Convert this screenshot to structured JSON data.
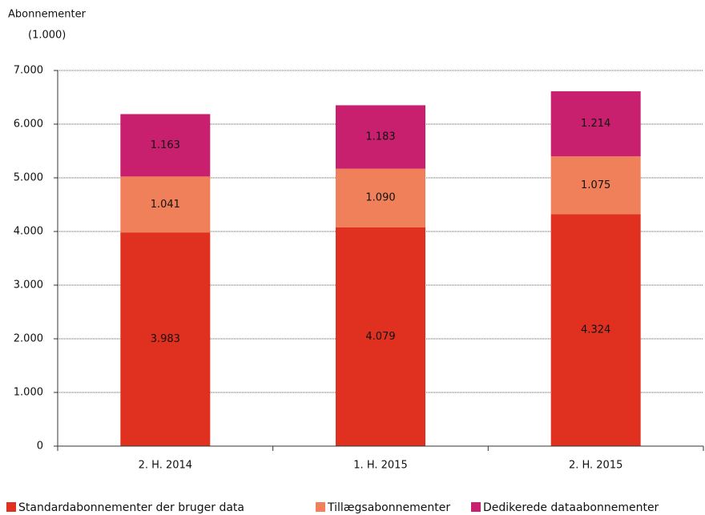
{
  "chart_data": {
    "type": "stacked_bar",
    "y_label": "Abonnementer",
    "y_unit": "(1.000)",
    "categories": [
      "2. H. 2014",
      "1. H. 2015",
      "2. H. 2015"
    ],
    "series": [
      {
        "name": "Standardabonnementer der bruger data",
        "color": "#e03120",
        "values": [
          3983,
          4079,
          4324
        ],
        "value_labels": [
          "3.983",
          "4.079",
          "4.324"
        ]
      },
      {
        "name": "Tillægsabonnementer",
        "color": "#f0805a",
        "values": [
          1041,
          1090,
          1075
        ],
        "value_labels": [
          "1.041",
          "1.090",
          "1.075"
        ]
      },
      {
        "name": "Dedikerede dataabonnementer",
        "color": "#c8206e",
        "values": [
          1163,
          1183,
          1214
        ],
        "value_labels": [
          "1.163",
          "1.183",
          "1.214"
        ]
      }
    ],
    "ylim": [
      0,
      7000
    ],
    "yticks": [
      0,
      {
        "value": 1000,
        "label": "1.000"
      },
      {
        "value": 2000,
        "label": "2.000"
      },
      {
        "value": 3000,
        "label": "3.000"
      },
      {
        "value": 4000,
        "label": "4.000"
      },
      {
        "value": 5000,
        "label": "5.000"
      },
      {
        "value": 6000,
        "label": "6.000"
      },
      {
        "value": 7000,
        "label": "7.000"
      }
    ],
    "grid": true,
    "legend": "bottom"
  }
}
